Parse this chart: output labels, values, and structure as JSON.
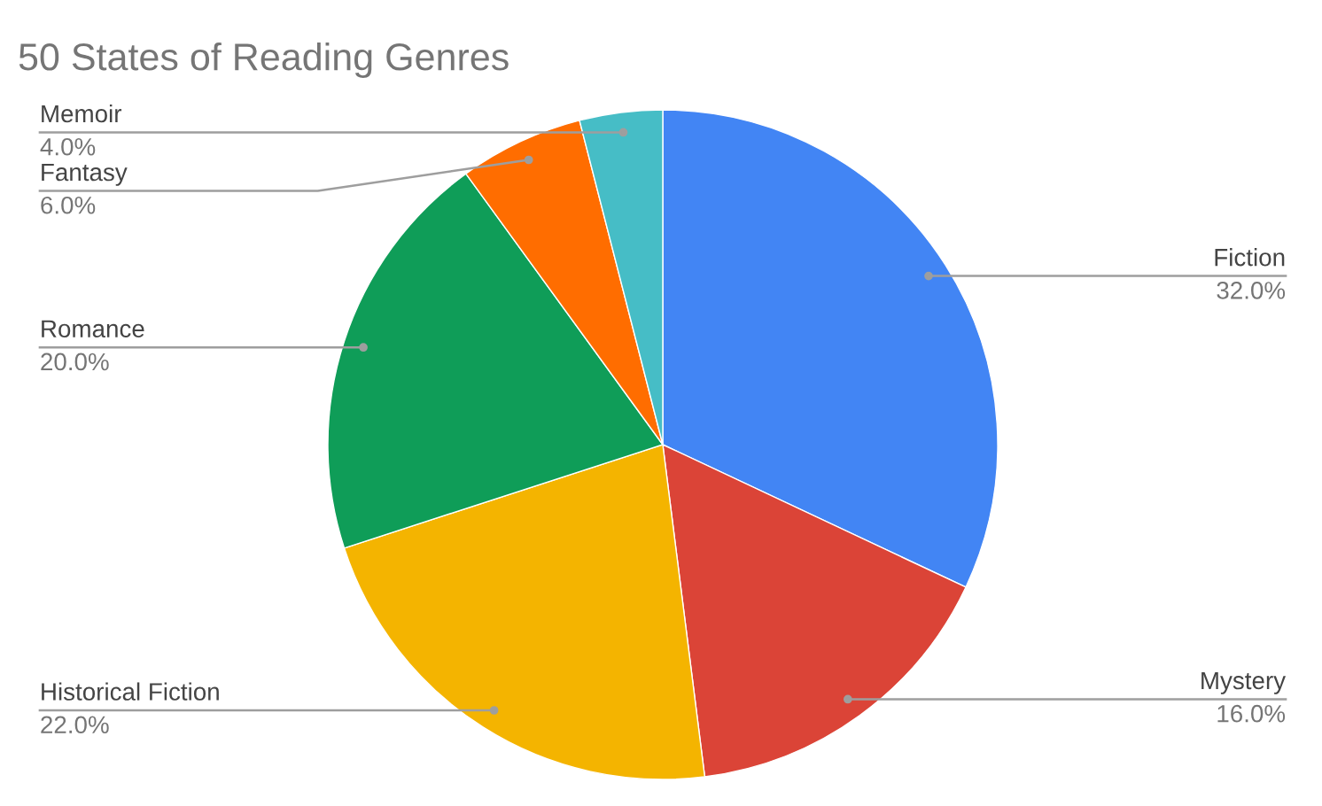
{
  "chart_data": {
    "type": "pie",
    "title": "50 States of Reading Genres",
    "categories": [
      "Fiction",
      "Mystery",
      "Historical Fiction",
      "Romance",
      "Fantasy",
      "Memoir"
    ],
    "values": [
      32,
      16,
      22,
      20,
      6,
      4
    ],
    "value_labels": [
      "32.0%",
      "16.0%",
      "22.0%",
      "20.0%",
      "6.0%",
      "4.0%"
    ],
    "colors": [
      "#4285f4",
      "#db4437",
      "#f4b400",
      "#0f9d58",
      "#ff6d00",
      "#46bdc6"
    ]
  }
}
